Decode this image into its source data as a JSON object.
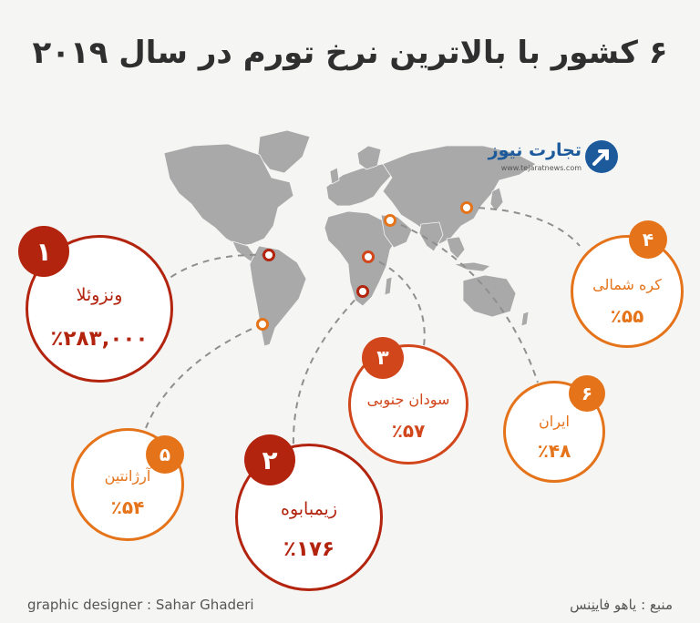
{
  "title": "۶ کشور با بالاترین نرخ تورم در سال ۲۰۱۹",
  "logo": {
    "name": "تجارت نیوز",
    "url": "www.tejaratnews.com"
  },
  "countries": [
    {
      "rank": "۱",
      "name": "ونزوئلا",
      "value": "٪۲۸۳,۰۰۰"
    },
    {
      "rank": "۲",
      "name": "زیمبابوه",
      "value": "٪۱۷۶"
    },
    {
      "rank": "۳",
      "name": "سودان جنوبی",
      "value": "٪۵۷"
    },
    {
      "rank": "۴",
      "name": "کره شمالی",
      "value": "٪۵۵"
    },
    {
      "rank": "۵",
      "name": "آرژانتین",
      "value": "٪۵۴"
    },
    {
      "rank": "۶",
      "name": "ایران",
      "value": "٪۴۸"
    }
  ],
  "footer": {
    "designer": "graphic designer : Sahar Ghaderi",
    "source": "منبع : یاهو فاینِنس"
  },
  "colors": {
    "dark_red": "#b3240f",
    "red": "#d2461c",
    "orange": "#e5731a",
    "map_gray": "#a9a9a9",
    "map_dark": "#8c8c8c"
  }
}
